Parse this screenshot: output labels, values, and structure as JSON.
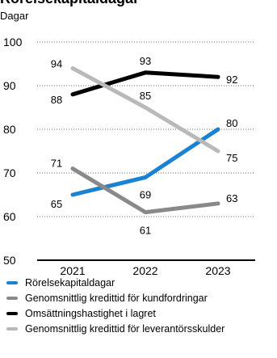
{
  "title": "Rörelsekapitaldagar",
  "subtitle": "Dagar",
  "chart_data": {
    "type": "line",
    "title": "Rörelsekapitaldagar",
    "subtitle": "Dagar",
    "xlabel": "",
    "ylabel": "",
    "categories": [
      "2021",
      "2022",
      "2023"
    ],
    "ylim": [
      50,
      100
    ],
    "yticks": [
      50,
      60,
      70,
      80,
      90,
      100
    ],
    "grid": true,
    "legend_position": "bottom",
    "series": [
      {
        "name": "Rörelsekapitaldagar",
        "values": [
          65,
          69,
          80
        ],
        "color": "#1a82d2"
      },
      {
        "name": "Genomsnittlig kredittid för kundfordringar",
        "values": [
          71,
          61,
          63
        ],
        "color": "#898989"
      },
      {
        "name": "Omsättningshastighet i lagret",
        "values": [
          88,
          93,
          92
        ],
        "color": "#000000"
      },
      {
        "name": "Genomsnittlig kredittid för leverantörsskulder",
        "values": [
          94,
          85,
          75
        ],
        "color": "#b9b9b9"
      }
    ]
  }
}
